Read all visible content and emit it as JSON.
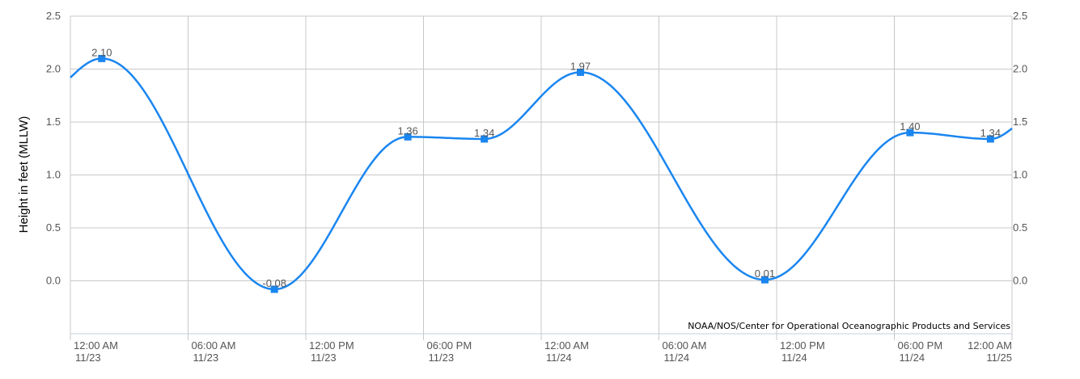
{
  "chart_data": {
    "type": "line",
    "title": "",
    "ylabel": "Height in feet (MLLW)",
    "xlabel": "",
    "ylim": [
      -0.5,
      2.5
    ],
    "yticks": [
      "2.5",
      "2.0",
      "1.5",
      "1.0",
      "0.5",
      "0.0"
    ],
    "ytick_values": [
      2.5,
      2.0,
      1.5,
      1.0,
      0.5,
      0.0
    ],
    "xlim": [
      "11/23 12:00 AM",
      "11/25 12:00 AM"
    ],
    "xticks": [
      {
        "time": "12:00 AM",
        "date": "11/23",
        "hour": 0
      },
      {
        "time": "06:00 AM",
        "date": "11/23",
        "hour": 6
      },
      {
        "time": "12:00 PM",
        "date": "11/23",
        "hour": 12
      },
      {
        "time": "06:00 PM",
        "date": "11/23",
        "hour": 18
      },
      {
        "time": "12:00 AM",
        "date": "11/24",
        "hour": 24
      },
      {
        "time": "06:00 AM",
        "date": "11/24",
        "hour": 30
      },
      {
        "time": "12:00 PM",
        "date": "11/24",
        "hour": 36
      },
      {
        "time": "06:00 PM",
        "date": "11/24",
        "hour": 42
      },
      {
        "time": "12:00 AM",
        "date": "11/25",
        "hour": 48
      }
    ],
    "series": [
      {
        "color": "#1a86f0",
        "points": [
          {
            "hour": 1.6,
            "value": 2.1,
            "label": "2.10"
          },
          {
            "hour": 10.4,
            "value": -0.08,
            "label": "-0.08"
          },
          {
            "hour": 17.2,
            "value": 1.36,
            "label": "1.36"
          },
          {
            "hour": 21.1,
            "value": 1.34,
            "label": "1.34"
          },
          {
            "hour": 26.0,
            "value": 1.97,
            "label": "1.97"
          },
          {
            "hour": 35.4,
            "value": 0.01,
            "label": "0.01"
          },
          {
            "hour": 42.8,
            "value": 1.4,
            "label": "1.40"
          },
          {
            "hour": 46.9,
            "value": 1.34,
            "label": "1.34"
          }
        ]
      }
    ],
    "curve_start_value": 1.92,
    "curve_end_value": 1.44,
    "grid": true,
    "credit": "NOAA/NOS/Center for Operational Oceanographic Products and Services"
  }
}
